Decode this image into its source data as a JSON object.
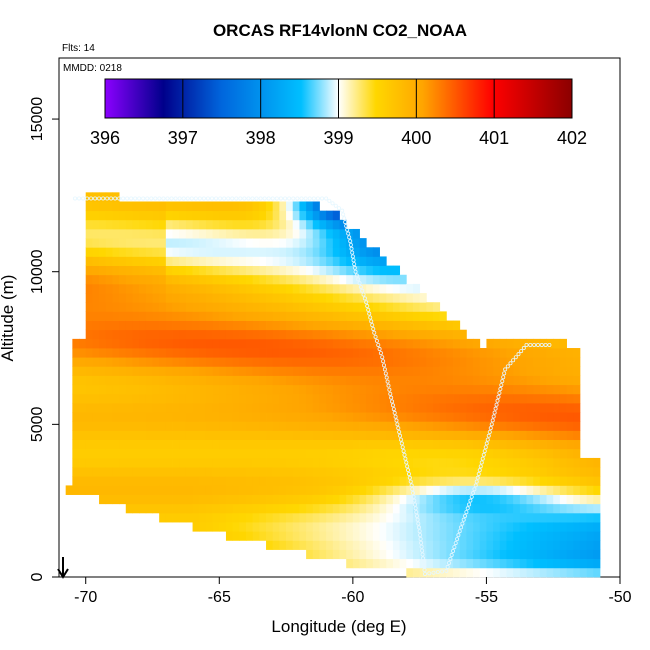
{
  "chart_data": {
    "type": "heatmap",
    "title": "ORCAS RF14vlonN CO2_NOAA",
    "xlabel": "Longitude (deg E)",
    "ylabel": "Altitude (m)",
    "xlim": [
      -71,
      -50
    ],
    "ylim": [
      0,
      17000
    ],
    "x_ticks": [
      -70,
      -65,
      -60,
      -55,
      -50
    ],
    "x_tick_labels": [
      "-70",
      "-65",
      "-60",
      "-55",
      "-50"
    ],
    "y_ticks": [
      0,
      5000,
      10000,
      15000
    ],
    "y_tick_labels": [
      "0",
      "5000",
      "10000",
      "15000"
    ],
    "colorbar": {
      "min": 396,
      "max": 402,
      "ticks": [
        396,
        397,
        398,
        399,
        400,
        401,
        402
      ],
      "tick_labels": [
        "396",
        "397",
        "398",
        "399",
        "400",
        "401",
        "402"
      ],
      "colors": [
        "#8B00FF",
        "#00008B",
        "#0066DD",
        "#00BFFF",
        "#FFFFFF",
        "#FFD700",
        "#FFA500",
        "#FF0000",
        "#8B0000"
      ]
    },
    "annotations": {
      "flights": "Flts: 14",
      "date": "MMDD: 0218"
    },
    "field_model": {
      "regions": [
        {
          "name": "upper-left-yellow",
          "value": 400.0
        },
        {
          "name": "orange-band",
          "value": 400.3
        },
        {
          "name": "mid-yellow",
          "value": 399.8
        },
        {
          "name": "low-lightblue",
          "value": 398.8
        },
        {
          "name": "deep-blue-top",
          "value": 396.9
        },
        {
          "name": "blue-lower",
          "value": 398.0
        }
      ]
    },
    "flight_track": [
      {
        "lon": -70.4,
        "alt": 12400
      },
      {
        "lon": -68,
        "alt": 12400
      },
      {
        "lon": -63,
        "alt": 12400
      },
      {
        "lon": -61,
        "alt": 12400
      },
      {
        "lon": -60.4,
        "alt": 12000
      },
      {
        "lon": -60.1,
        "alt": 11000
      },
      {
        "lon": -59.9,
        "alt": 10000
      },
      {
        "lon": -59.5,
        "alt": 9000
      },
      {
        "lon": -59.2,
        "alt": 8000
      },
      {
        "lon": -58.9,
        "alt": 7200
      },
      {
        "lon": -58.6,
        "alt": 6000
      },
      {
        "lon": -58.2,
        "alt": 4500
      },
      {
        "lon": -57.8,
        "alt": 3000
      },
      {
        "lon": -57.5,
        "alt": 1500
      },
      {
        "lon": -57.3,
        "alt": 100
      },
      {
        "lon": -56.5,
        "alt": 200
      },
      {
        "lon": -56.0,
        "alt": 1500
      },
      {
        "lon": -55.4,
        "alt": 3000
      },
      {
        "lon": -54.8,
        "alt": 5000
      },
      {
        "lon": -54.3,
        "alt": 6800
      },
      {
        "lon": -53.5,
        "alt": 7600
      },
      {
        "lon": -52.5,
        "alt": 7600
      }
    ],
    "grid": false,
    "legend": "top"
  }
}
